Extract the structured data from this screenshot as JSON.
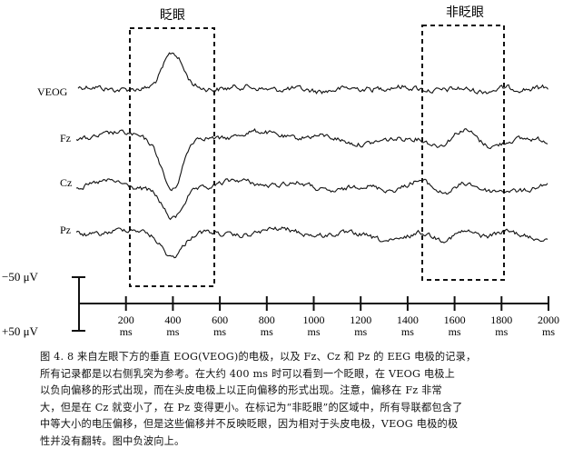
{
  "figure": {
    "box_labels": {
      "blink": "眨眼",
      "non_blink": "非眨眼"
    },
    "channels": [
      "VEOG",
      "Fz",
      "Cz",
      "Pz"
    ],
    "scale": {
      "negative": "−50 μV",
      "positive": "+50 μV"
    },
    "x_ticks": [
      {
        "value": 200,
        "label": "200",
        "unit": "ms"
      },
      {
        "value": 400,
        "label": "400",
        "unit": "ms"
      },
      {
        "value": 600,
        "label": "600",
        "unit": "ms"
      },
      {
        "value": 800,
        "label": "800",
        "unit": "ms"
      },
      {
        "value": 1000,
        "label": "1000",
        "unit": "ms"
      },
      {
        "value": 1200,
        "label": "1200",
        "unit": "ms"
      },
      {
        "value": 1400,
        "label": "1400",
        "unit": "ms"
      },
      {
        "value": 1600,
        "label": "1600",
        "unit": "ms"
      },
      {
        "value": 1800,
        "label": "1800",
        "unit": "ms"
      },
      {
        "value": 2000,
        "label": "2000",
        "unit": "ms"
      }
    ]
  },
  "caption": {
    "lines": [
      "图 4. 8   来自左眼下方的垂直 EOG(VEOG)的电极，以及 Fz、Cz 和 Pz 的 EEG 电极的记录，",
      "所有记录都是以右侧乳突为参考。在大约 400 ms 时可以看到一个眨眼，在 VEOG 电极上",
      "以负向偏移的形式出现，而在头皮电极上以正向偏移的形式出现。注意，偏移在 Fz 非常",
      "大，但是在 Cz 就变小了，在 Pz 变得更小。在标记为“非眨眼”的区域中，所有导联都包含了",
      "中等大小的电压偏移，但是这些偏移并不反映眨眼，因为相对于头皮电极，VEOG 电极的极",
      "性并没有翻转。图中负波向上。"
    ]
  }
}
